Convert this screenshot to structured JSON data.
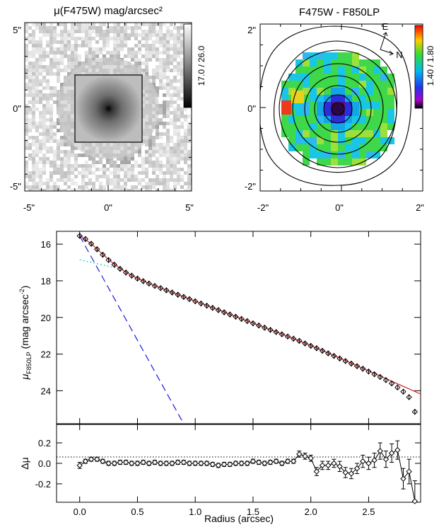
{
  "chart_data": [
    {
      "type": "heatmap",
      "title": "μ(F475W) mag/arcsec²",
      "xticks": [
        "-5\"",
        "0\"",
        "5\""
      ],
      "yticks": [
        "-5\"",
        "0\"",
        "5\""
      ],
      "xlim": [
        -6.2,
        6.2
      ],
      "ylim": [
        -6.2,
        6.2
      ],
      "colorbar_label": "17.0 / 26.0",
      "inset_box_arcsec": [
        -2,
        2
      ]
    },
    {
      "type": "heatmap",
      "title": "F475W - F850LP",
      "xticks": [
        "-2\"",
        "0\"",
        "2\""
      ],
      "yticks": [
        "-2\"",
        "0\"",
        "2\""
      ],
      "xlim": [
        -2.1,
        2.1
      ],
      "ylim": [
        -2.1,
        2.1
      ],
      "colorbar_label": "1.40 / 1.80",
      "compass": {
        "east": "E",
        "north": "N"
      }
    },
    {
      "type": "scatter",
      "xlabel": "Radius (arcsec)",
      "ylabel": "μF850LP (mag arcsec-2)",
      "xlim": [
        -0.2,
        2.95
      ],
      "ylim": [
        25.8,
        15.3
      ],
      "yticks": [
        "16",
        "18",
        "20",
        "22",
        "24"
      ],
      "series": [
        {
          "x": [
            0.0,
            0.05,
            0.1,
            0.15,
            0.2,
            0.25,
            0.3,
            0.35,
            0.4,
            0.45,
            0.5,
            0.55,
            0.6,
            0.65,
            0.7,
            0.75,
            0.8,
            0.85,
            0.9,
            0.95,
            1.0,
            1.05,
            1.1,
            1.15,
            1.2,
            1.25,
            1.3,
            1.35,
            1.4,
            1.45,
            1.5,
            1.55,
            1.6,
            1.65,
            1.7,
            1.75,
            1.8,
            1.85,
            1.9,
            1.95,
            2.0,
            2.05,
            2.1,
            2.15,
            2.2,
            2.25,
            2.3,
            2.35,
            2.4,
            2.45,
            2.5,
            2.55,
            2.6,
            2.65,
            2.7,
            2.75,
            2.8,
            2.85,
            2.9
          ],
          "y": [
            15.55,
            15.72,
            15.98,
            16.28,
            16.58,
            16.87,
            17.12,
            17.35,
            17.55,
            17.72,
            17.88,
            18.02,
            18.15,
            18.28,
            18.4,
            18.52,
            18.64,
            18.76,
            18.88,
            19.0,
            19.12,
            19.24,
            19.36,
            19.48,
            19.6,
            19.72,
            19.84,
            19.96,
            20.08,
            20.2,
            20.32,
            20.44,
            20.56,
            20.68,
            20.8,
            20.92,
            21.04,
            21.16,
            21.28,
            21.42,
            21.55,
            21.68,
            21.82,
            21.96,
            22.1,
            22.24,
            22.38,
            22.52,
            22.66,
            22.8,
            22.95,
            23.1,
            23.25,
            23.42,
            23.6,
            23.82,
            24.05,
            24.35,
            25.15
          ]
        }
      ],
      "models": [
        {
          "style": "solid",
          "color": "#d22020",
          "x": [
            0.0,
            0.1,
            0.2,
            0.3,
            0.4,
            0.5,
            0.6,
            0.7,
            0.8,
            1.0,
            1.2,
            1.4,
            1.6,
            1.8,
            2.0,
            2.2,
            2.4,
            2.6,
            2.8,
            2.95
          ],
          "y": [
            15.52,
            15.98,
            16.56,
            17.1,
            17.53,
            17.87,
            18.14,
            18.39,
            18.63,
            19.11,
            19.59,
            20.07,
            20.55,
            21.03,
            21.53,
            22.08,
            22.64,
            23.2,
            23.76,
            24.18
          ]
        },
        {
          "style": "dashed",
          "color": "#1a1adf",
          "x": [
            0.0,
            0.9
          ],
          "y": [
            15.55,
            25.8
          ]
        },
        {
          "style": "dotted",
          "color": "#1fc8c8",
          "x": [
            0.0,
            0.35
          ],
          "y": [
            16.85,
            17.35
          ]
        }
      ]
    },
    {
      "type": "scatter",
      "xlabel": "Radius (arcsec)",
      "ylabel": "Δμ",
      "xlim": [
        -0.2,
        2.95
      ],
      "ylim": [
        -0.38,
        0.38
      ],
      "xticks": [
        "0.0",
        "0.5",
        "1.0",
        "1.5",
        "2.0",
        "2.5"
      ],
      "yticks": [
        "0.2",
        "0.0",
        "-0.2"
      ],
      "series": [
        {
          "x": [
            0.0,
            0.05,
            0.1,
            0.15,
            0.2,
            0.25,
            0.3,
            0.35,
            0.4,
            0.45,
            0.5,
            0.55,
            0.6,
            0.65,
            0.7,
            0.75,
            0.8,
            0.85,
            0.9,
            0.95,
            1.0,
            1.05,
            1.1,
            1.15,
            1.2,
            1.25,
            1.3,
            1.35,
            1.4,
            1.45,
            1.5,
            1.55,
            1.6,
            1.65,
            1.7,
            1.75,
            1.8,
            1.85,
            1.9,
            1.95,
            2.0,
            2.05,
            2.1,
            2.15,
            2.2,
            2.25,
            2.3,
            2.35,
            2.4,
            2.45,
            2.5,
            2.55,
            2.6,
            2.65,
            2.7,
            2.75,
            2.8,
            2.85,
            2.9
          ],
          "y": [
            -0.02,
            0.02,
            0.04,
            0.04,
            0.02,
            0.0,
            0.0,
            0.01,
            0.01,
            0.0,
            0.0,
            0.01,
            0.0,
            0.01,
            0.0,
            0.0,
            0.0,
            0.01,
            0.01,
            0.0,
            0.0,
            0.0,
            0.0,
            -0.01,
            -0.02,
            -0.01,
            -0.01,
            0.0,
            0.0,
            0.0,
            0.02,
            0.01,
            0.0,
            0.01,
            0.02,
            0.0,
            0.02,
            0.02,
            0.09,
            0.07,
            0.05,
            -0.08,
            -0.02,
            -0.02,
            0.0,
            -0.03,
            -0.09,
            -0.1,
            -0.05,
            0.02,
            0.0,
            0.03,
            0.12,
            0.04,
            0.1,
            0.13,
            -0.15,
            -0.08,
            -0.37
          ],
          "errors": [
            0.03,
            0.02,
            0.02,
            0.02,
            0.02,
            0.02,
            0.02,
            0.02,
            0.02,
            0.02,
            0.02,
            0.02,
            0.02,
            0.02,
            0.02,
            0.02,
            0.02,
            0.02,
            0.02,
            0.02,
            0.02,
            0.02,
            0.02,
            0.02,
            0.02,
            0.02,
            0.02,
            0.02,
            0.02,
            0.02,
            0.02,
            0.02,
            0.02,
            0.02,
            0.02,
            0.02,
            0.02,
            0.02,
            0.03,
            0.03,
            0.03,
            0.04,
            0.04,
            0.04,
            0.04,
            0.05,
            0.05,
            0.05,
            0.05,
            0.06,
            0.06,
            0.07,
            0.08,
            0.08,
            0.09,
            0.09,
            0.1,
            0.12,
            0.2
          ]
        }
      ]
    }
  ]
}
